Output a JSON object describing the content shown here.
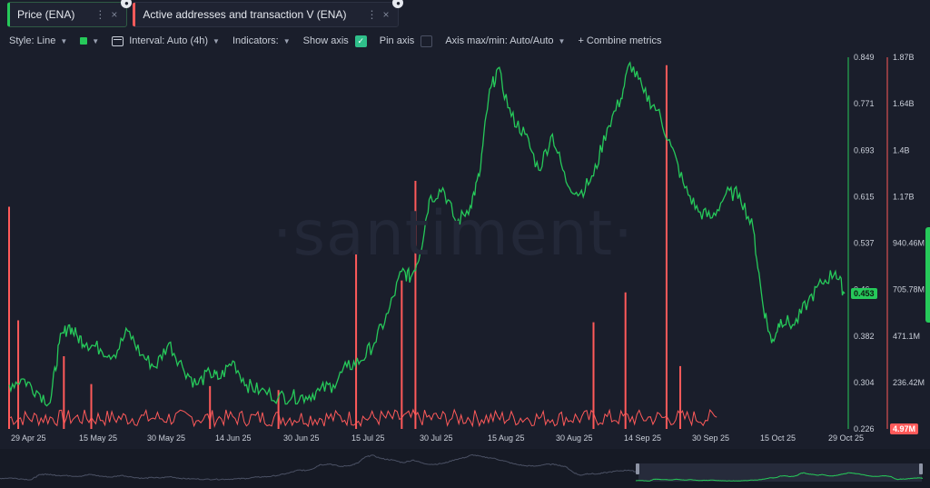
{
  "tabs": [
    {
      "label": "Price (ENA)",
      "color": "#26c95a",
      "active": true,
      "close": "×",
      "menu": "⋮"
    },
    {
      "label": "Active addresses and transaction V (ENA)",
      "color": "#ff5a5a",
      "active": false,
      "close": "×",
      "menu": "⋮"
    }
  ],
  "toolbar": {
    "style": "Style: Line",
    "interval": "Interval: Auto (4h)",
    "indicators": "Indicators:",
    "show_axis": "Show axis",
    "pin_axis": "Pin axis",
    "axis_maxmin": "Axis max/min: Auto/Auto",
    "combine": "+  Combine metrics"
  },
  "watermark": "·santiment·",
  "current_values": {
    "price": "0.453",
    "volume": "4.97M"
  },
  "chart_data": {
    "type": "line",
    "x_tick_labels": [
      "29 Apr 25",
      "15 May 25",
      "30 May 25",
      "14 Jun 25",
      "30 Jun 25",
      "15 Jul 25",
      "30 Jul 25",
      "15 Aug 25",
      "30 Aug 25",
      "14 Sep 25",
      "30 Sep 25",
      "15 Oct 25",
      "29 Oct 25"
    ],
    "price_axis_ticks": [
      "0.849",
      "0.771",
      "0.693",
      "0.615",
      "0.537",
      "0.46",
      "0.382",
      "0.304",
      "0.226"
    ],
    "price_axis_range": [
      0.226,
      0.849
    ],
    "volume_axis_ticks": [
      "1.87B",
      "1.64B",
      "1.4B",
      "1.17B",
      "940.46M",
      "705.78M",
      "471.1M",
      "236.42M",
      "4.97M"
    ],
    "volume_axis_range": [
      4970000,
      1870000000
    ],
    "series": [
      {
        "name": "Price (ENA)",
        "color": "#26c95a",
        "axis": "left-scale",
        "points": [
          [
            "2025-04-29",
            0.3
          ],
          [
            "2025-05-02",
            0.31
          ],
          [
            "2025-05-05",
            0.29
          ],
          [
            "2025-05-08",
            0.27
          ],
          [
            "2025-05-10",
            0.37
          ],
          [
            "2025-05-12",
            0.4
          ],
          [
            "2025-05-14",
            0.38
          ],
          [
            "2025-05-16",
            0.37
          ],
          [
            "2025-05-19",
            0.36
          ],
          [
            "2025-05-22",
            0.35
          ],
          [
            "2025-05-25",
            0.39
          ],
          [
            "2025-05-28",
            0.35
          ],
          [
            "2025-05-31",
            0.33
          ],
          [
            "2025-06-03",
            0.37
          ],
          [
            "2025-06-06",
            0.33
          ],
          [
            "2025-06-09",
            0.3
          ],
          [
            "2025-06-12",
            0.32
          ],
          [
            "2025-06-14",
            0.31
          ],
          [
            "2025-06-17",
            0.34
          ],
          [
            "2025-06-20",
            0.3
          ],
          [
            "2025-06-23",
            0.29
          ],
          [
            "2025-06-27",
            0.28
          ],
          [
            "2025-06-30",
            0.28
          ],
          [
            "2025-07-03",
            0.28
          ],
          [
            "2025-07-06",
            0.29
          ],
          [
            "2025-07-09",
            0.3
          ],
          [
            "2025-07-12",
            0.33
          ],
          [
            "2025-07-15",
            0.34
          ],
          [
            "2025-07-18",
            0.37
          ],
          [
            "2025-07-21",
            0.42
          ],
          [
            "2025-07-24",
            0.49
          ],
          [
            "2025-07-26",
            0.48
          ],
          [
            "2025-07-28",
            0.52
          ],
          [
            "2025-07-30",
            0.61
          ],
          [
            "2025-08-02",
            0.63
          ],
          [
            "2025-08-05",
            0.57
          ],
          [
            "2025-08-08",
            0.6
          ],
          [
            "2025-08-10",
            0.65
          ],
          [
            "2025-08-12",
            0.78
          ],
          [
            "2025-08-14",
            0.83
          ],
          [
            "2025-08-17",
            0.75
          ],
          [
            "2025-08-20",
            0.72
          ],
          [
            "2025-08-23",
            0.66
          ],
          [
            "2025-08-26",
            0.72
          ],
          [
            "2025-08-29",
            0.64
          ],
          [
            "2025-09-01",
            0.62
          ],
          [
            "2025-09-04",
            0.65
          ],
          [
            "2025-09-07",
            0.73
          ],
          [
            "2025-09-10",
            0.78
          ],
          [
            "2025-09-12",
            0.84
          ],
          [
            "2025-09-15",
            0.79
          ],
          [
            "2025-09-18",
            0.76
          ],
          [
            "2025-09-21",
            0.7
          ],
          [
            "2025-09-24",
            0.63
          ],
          [
            "2025-09-27",
            0.59
          ],
          [
            "2025-09-30",
            0.58
          ],
          [
            "2025-10-03",
            0.62
          ],
          [
            "2025-10-06",
            0.62
          ],
          [
            "2025-10-09",
            0.56
          ],
          [
            "2025-10-11",
            0.44
          ],
          [
            "2025-10-13",
            0.37
          ],
          [
            "2025-10-15",
            0.41
          ],
          [
            "2025-10-18",
            0.4
          ],
          [
            "2025-10-21",
            0.44
          ],
          [
            "2025-10-24",
            0.47
          ],
          [
            "2025-10-27",
            0.49
          ],
          [
            "2025-10-29",
            0.453
          ]
        ]
      },
      {
        "name": "Active addresses and transaction V (ENA)",
        "color": "#ff5a5a",
        "axis": "right-scale",
        "spikes": [
          [
            "2025-04-29",
            1120000000.0
          ],
          [
            "2025-05-01",
            550000000.0
          ],
          [
            "2025-05-11",
            370000000.0
          ],
          [
            "2025-05-17",
            230000000.0
          ],
          [
            "2025-06-12",
            220000000.0
          ],
          [
            "2025-06-27",
            200000000.0
          ],
          [
            "2025-07-14",
            900000000.0
          ],
          [
            "2025-07-24",
            750000000.0
          ],
          [
            "2025-07-27",
            1250000000.0
          ],
          [
            "2025-09-04",
            540000000.0
          ],
          [
            "2025-09-11",
            690000000.0
          ],
          [
            "2025-09-20",
            1830000000.0
          ],
          [
            "2025-09-23",
            320000000.0
          ]
        ],
        "baseline_level": 60000000.0
      }
    ]
  }
}
